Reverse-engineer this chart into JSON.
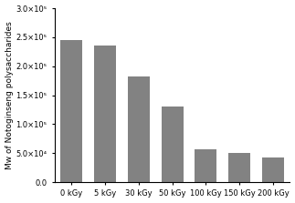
{
  "categories": [
    "0 kGy",
    "5 kGy",
    "30 kGy",
    "50 kGy",
    "100 kGy",
    "150 kGy",
    "200 kGy"
  ],
  "values": [
    245000,
    235000,
    183000,
    130000,
    57000,
    50000,
    42000
  ],
  "bar_color": "#828282",
  "ylabel": "Mw of Notoginseng polysaccharides",
  "ylim": [
    0,
    300000
  ],
  "ytick_values": [
    0,
    50000,
    100000,
    150000,
    200000,
    250000,
    300000
  ],
  "ytick_labels": [
    "0.0",
    "5.0×10⁴",
    "1.0×10⁵",
    "1.5×10⁵",
    "2.0×10⁵",
    "2.5×10⁵",
    "3.0×10⁵"
  ],
  "background_color": "#ffffff",
  "bar_edge_color": "none"
}
